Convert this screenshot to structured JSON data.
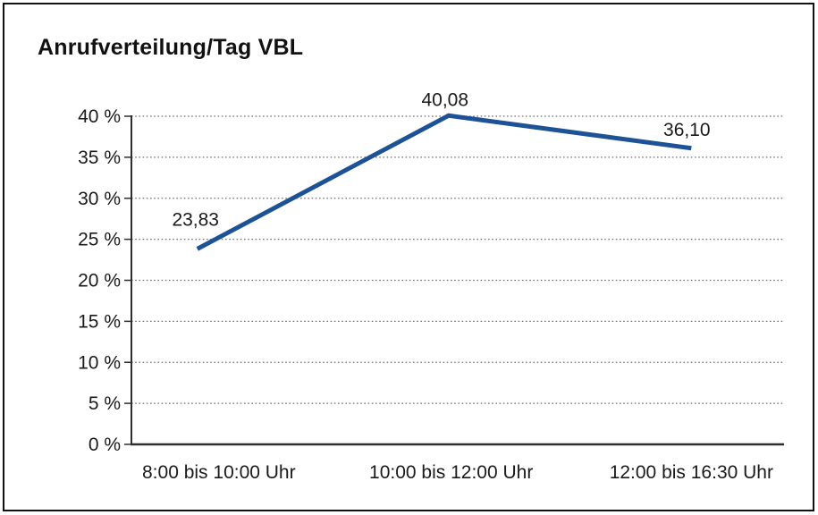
{
  "window": {
    "background_color": "#ffffff",
    "frame_border_color": "#111111"
  },
  "chart_data": {
    "type": "line",
    "title": "Anrufverteilung/Tag VBL",
    "categories": [
      "8:00 bis 10:00 Uhr",
      "10:00 bis 12:00 Uhr",
      "12:00 bis 16:30 Uhr"
    ],
    "series": [
      {
        "values": [
          23.83,
          40.08,
          36.1
        ],
        "value_labels": [
          "23,83",
          "40,08",
          "36,10"
        ],
        "color": "#1d5296"
      }
    ],
    "xlabel": "",
    "ylabel": "",
    "y_min": 0,
    "y_max": 40,
    "y_step": 5,
    "y_tick_labels": [
      "0 %",
      "5 %",
      "10 %",
      "15 %",
      "20 %",
      "25 %",
      "30 %",
      "35 %",
      "40 %"
    ],
    "grid": "horizontal-dotted",
    "gridline_color": "#6f6f6f",
    "axis_color": "#2e2e2e",
    "legend": "none",
    "markers": "none"
  }
}
